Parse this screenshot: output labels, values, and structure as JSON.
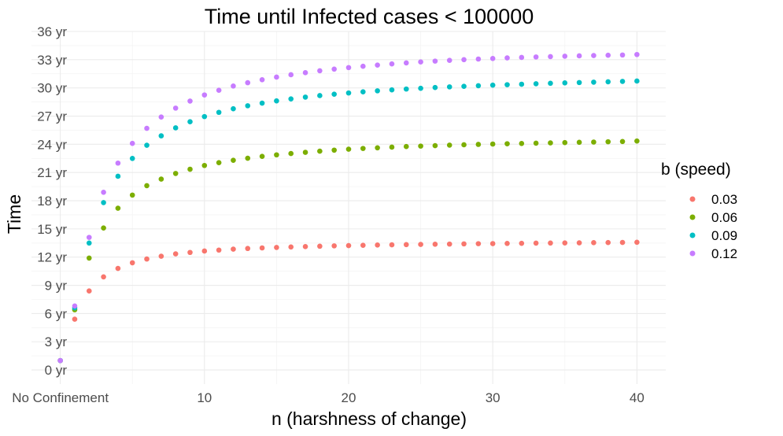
{
  "chart_data": {
    "type": "scatter",
    "title": "Time until Infected cases < 100000",
    "xlabel": "n (harshness of change)",
    "ylabel": "Time",
    "xlim": [
      -2,
      42
    ],
    "ylim": [
      -1.5,
      36
    ],
    "x_ticks": [
      {
        "value": 0,
        "label": "No Confinement"
      },
      {
        "value": 10,
        "label": "10"
      },
      {
        "value": 20,
        "label": "20"
      },
      {
        "value": 30,
        "label": "30"
      },
      {
        "value": 40,
        "label": "40"
      }
    ],
    "y_ticks": [
      {
        "value": 0,
        "label": "0 yr"
      },
      {
        "value": 3,
        "label": "3 yr"
      },
      {
        "value": 6,
        "label": "6 yr"
      },
      {
        "value": 9,
        "label": "9 yr"
      },
      {
        "value": 12,
        "label": "12 yr"
      },
      {
        "value": 15,
        "label": "15 yr"
      },
      {
        "value": 18,
        "label": "18 yr"
      },
      {
        "value": 21,
        "label": "21 yr"
      },
      {
        "value": 24,
        "label": "24 yr"
      },
      {
        "value": 27,
        "label": "27 yr"
      },
      {
        "value": 30,
        "label": "30 yr"
      },
      {
        "value": 33,
        "label": "33 yr"
      },
      {
        "value": 36,
        "label": "36 yr"
      }
    ],
    "grid": true,
    "legend": {
      "title": "b (speed)",
      "placement": "right"
    },
    "x": [
      0,
      1,
      2,
      3,
      4,
      5,
      6,
      7,
      8,
      9,
      10,
      11,
      12,
      13,
      14,
      15,
      16,
      17,
      18,
      19,
      20,
      21,
      22,
      23,
      24,
      25,
      26,
      27,
      28,
      29,
      30,
      31,
      32,
      33,
      34,
      35,
      36,
      37,
      38,
      39,
      40
    ],
    "series": [
      {
        "name": "0.03",
        "color": "#F8766D",
        "values": [
          1.0,
          5.4,
          8.4,
          9.9,
          10.8,
          11.4,
          11.8,
          12.1,
          12.35,
          12.5,
          12.65,
          12.75,
          12.85,
          12.92,
          12.98,
          13.03,
          13.08,
          13.12,
          13.16,
          13.2,
          13.23,
          13.26,
          13.29,
          13.31,
          13.33,
          13.35,
          13.37,
          13.39,
          13.41,
          13.43,
          13.44,
          13.46,
          13.47,
          13.49,
          13.5,
          13.51,
          13.52,
          13.54,
          13.55,
          13.56,
          13.58
        ]
      },
      {
        "name": "0.06",
        "color": "#7CAE00",
        "values": [
          1.0,
          6.4,
          11.9,
          15.1,
          17.2,
          18.6,
          19.6,
          20.3,
          20.9,
          21.35,
          21.75,
          22.05,
          22.3,
          22.52,
          22.72,
          22.88,
          23.02,
          23.15,
          23.27,
          23.38,
          23.48,
          23.56,
          23.63,
          23.7,
          23.76,
          23.81,
          23.86,
          23.91,
          23.95,
          23.99,
          24.03,
          24.06,
          24.09,
          24.12,
          24.15,
          24.18,
          24.21,
          24.24,
          24.27,
          24.3,
          24.35
        ]
      },
      {
        "name": "0.09",
        "color": "#00BFC4",
        "values": [
          1.0,
          6.6,
          13.5,
          17.8,
          20.6,
          22.5,
          23.9,
          24.9,
          25.75,
          26.4,
          26.95,
          27.4,
          27.78,
          28.1,
          28.38,
          28.62,
          28.83,
          29.02,
          29.18,
          29.33,
          29.46,
          29.58,
          29.69,
          29.79,
          29.88,
          29.96,
          30.04,
          30.11,
          30.17,
          30.23,
          30.29,
          30.34,
          30.39,
          30.44,
          30.49,
          30.53,
          30.57,
          30.61,
          30.65,
          30.69,
          30.73
        ]
      },
      {
        "name": "0.12",
        "color": "#C77CFF",
        "values": [
          1.0,
          6.8,
          14.1,
          18.9,
          22.0,
          24.1,
          25.7,
          26.9,
          27.85,
          28.6,
          29.25,
          29.75,
          30.2,
          30.55,
          30.87,
          31.15,
          31.4,
          31.62,
          31.82,
          32.0,
          32.16,
          32.3,
          32.43,
          32.55,
          32.66,
          32.76,
          32.85,
          32.93,
          33.0,
          33.07,
          33.13,
          33.19,
          33.24,
          33.29,
          33.33,
          33.37,
          33.41,
          33.44,
          33.47,
          33.5,
          33.55
        ]
      }
    ]
  }
}
